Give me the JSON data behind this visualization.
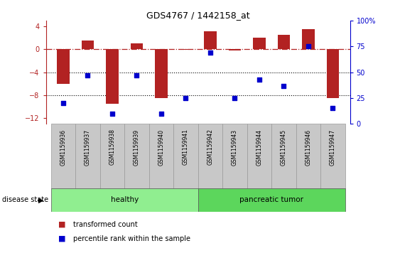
{
  "title": "GDS4767 / 1442158_at",
  "samples": [
    "GSM1159936",
    "GSM1159937",
    "GSM1159938",
    "GSM1159939",
    "GSM1159940",
    "GSM1159941",
    "GSM1159942",
    "GSM1159943",
    "GSM1159944",
    "GSM1159945",
    "GSM1159946",
    "GSM1159947"
  ],
  "bar_values": [
    -6.0,
    1.5,
    -9.5,
    1.0,
    -8.5,
    -0.1,
    3.2,
    -0.2,
    2.0,
    2.5,
    3.5,
    -8.5
  ],
  "dot_values": [
    20,
    47,
    10,
    47,
    10,
    25,
    69,
    25,
    43,
    37,
    75,
    15
  ],
  "bar_color": "#b22222",
  "dot_color": "#0000cd",
  "ylim_left": [
    -13,
    5
  ],
  "ylim_right": [
    0,
    100
  ],
  "yticks_left": [
    -12,
    -8,
    -4,
    0,
    4
  ],
  "yticks_right": [
    0,
    25,
    50,
    75,
    100
  ],
  "hline_y": 0,
  "dotted_lines": [
    -4,
    -8
  ],
  "disease_groups": [
    {
      "label": "healthy",
      "start": 0,
      "end": 6,
      "color": "#90ee90"
    },
    {
      "label": "pancreatic tumor",
      "start": 6,
      "end": 12,
      "color": "#5cd65c"
    }
  ],
  "disease_state_label": "disease state",
  "legend_entries": [
    {
      "label": "transformed count",
      "color": "#b22222"
    },
    {
      "label": "percentile rank within the sample",
      "color": "#0000cd"
    }
  ],
  "bar_width": 0.5,
  "background_color": "#ffffff",
  "tick_label_bg": "#c8c8c8"
}
